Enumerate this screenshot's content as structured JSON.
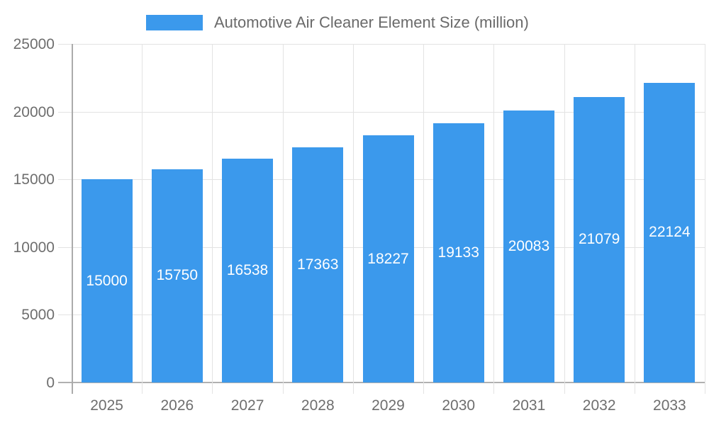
{
  "legend": {
    "label": "Automotive Air Cleaner Element Size (million)"
  },
  "chart_data": {
    "type": "bar",
    "title": "Automotive Air Cleaner Element Size (million)",
    "categories": [
      "2025",
      "2026",
      "2027",
      "2028",
      "2029",
      "2030",
      "2031",
      "2032",
      "2033"
    ],
    "values": [
      15000,
      15750,
      16538,
      17363,
      18227,
      19133,
      20083,
      21079,
      22124
    ],
    "bar_value_labels": [
      "15000",
      "15750",
      "16538",
      "17363",
      "18227",
      "19133",
      "20083",
      "21079",
      "22124"
    ],
    "xlabel": "",
    "ylabel": "",
    "ylim": [
      0,
      25000
    ],
    "yticks": [
      0,
      5000,
      10000,
      15000,
      20000,
      25000
    ],
    "ytick_labels": [
      "0",
      "5000",
      "10000",
      "15000",
      "20000",
      "25000"
    ],
    "grid": true,
    "legend_position": "top",
    "value_label_placement": "center-of-bar"
  },
  "colors": {
    "bar": "#3B99EC",
    "grid": "#e3e3e3",
    "axis": "#ababab",
    "baseline": "#b0b0b0",
    "tick_text": "#6e6e6e",
    "legend_text": "#6a6a6a",
    "bar_label_text": "#ffffff",
    "background": "#ffffff"
  }
}
